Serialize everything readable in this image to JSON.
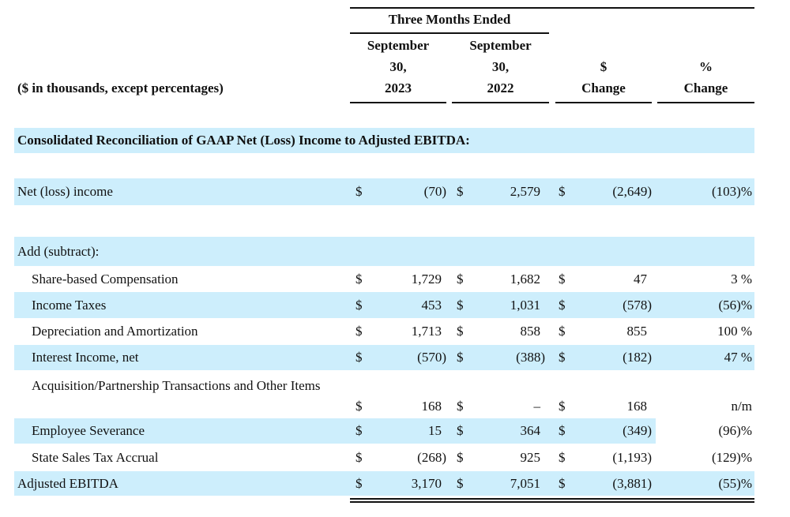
{
  "header": {
    "group": "Three Months Ended",
    "units": "($ in thousands, except percentages)",
    "columns": [
      [
        "September",
        "30,",
        "2023"
      ],
      [
        "September",
        "30,",
        "2022"
      ],
      [
        "$",
        "Change"
      ],
      [
        "%",
        "Change"
      ]
    ]
  },
  "section_title": "Consolidated Reconciliation of GAAP Net (Loss) Income to Adjusted EBITDA:",
  "rows": [
    {
      "label": "Net (loss) income",
      "cells": [
        "$",
        "(70)",
        "$",
        "2,579",
        "$",
        "(2,649)",
        "(103)%"
      ]
    },
    {
      "label": "Add (subtract):",
      "cells": []
    },
    {
      "label": "Share-based Compensation",
      "cells": [
        "$",
        "1,729",
        "$",
        "1,682",
        "$",
        "47",
        "3 %"
      ]
    },
    {
      "label": "Income Taxes",
      "cells": [
        "$",
        "453",
        "$",
        "1,031",
        "$",
        "(578)",
        "(56)%"
      ]
    },
    {
      "label": "Depreciation and Amortization",
      "cells": [
        "$",
        "1,713",
        "$",
        "858",
        "$",
        "855",
        "100 %"
      ]
    },
    {
      "label": "Interest Income, net",
      "cells": [
        "$",
        "(570)",
        "$",
        "(388)",
        "$",
        "(182)",
        "47 %"
      ]
    },
    {
      "label": "Acquisition/Partnership Transactions and Other Items",
      "cells": [
        "$",
        "168",
        "$",
        "–",
        "$",
        "168",
        "n/m"
      ]
    },
    {
      "label": "Employee Severance",
      "cells": [
        "$",
        "15",
        "$",
        "364",
        "$",
        "(349)",
        "(96)%"
      ]
    },
    {
      "label": "State Sales Tax Accrual",
      "cells": [
        "$",
        "(268)",
        "$",
        "925",
        "$",
        "(1,193)",
        "(129)%"
      ]
    },
    {
      "label": "Adjusted EBITDA",
      "cells": [
        "$",
        "3,170",
        "$",
        "7,051",
        "$",
        "(3,881)",
        "(55)%"
      ]
    }
  ]
}
